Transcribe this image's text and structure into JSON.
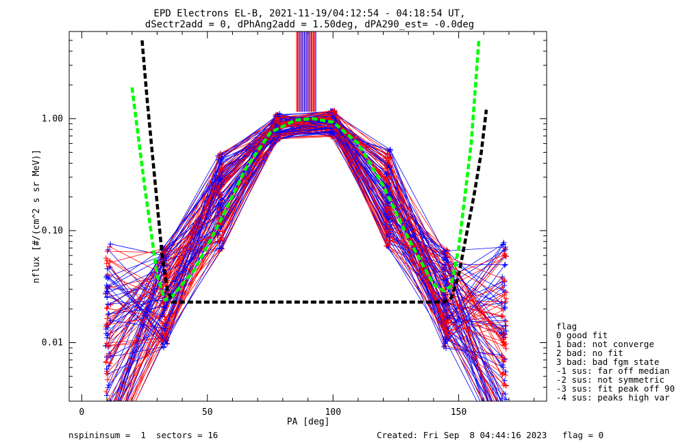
{
  "chart_data": {
    "type": "line",
    "title": "EPD Electrons EL-B, 2021-11-19/04:12:54 - 04:18:54 UT,",
    "subtitle": "dSectr2add = 0, dPhAng2add = 1.50deg, dPA290_est=  -0.0deg",
    "xlabel": "PA [deg]",
    "ylabel": "nflux [#/(cm^2 s sr MeV)]",
    "xlim": [
      -5,
      185
    ],
    "ylim": [
      0.003,
      6.0
    ],
    "yscale": "log",
    "x_ticks": [
      {
        "value": 0,
        "label": "0"
      },
      {
        "value": 50,
        "label": "50"
      },
      {
        "value": 100,
        "label": "100"
      },
      {
        "value": 150,
        "label": "150"
      }
    ],
    "y_ticks": [
      {
        "value": 0.01,
        "label": "0.01"
      },
      {
        "value": 0.1,
        "label": "0.10"
      },
      {
        "value": 1.0,
        "label": "1.00"
      }
    ],
    "series_colors": {
      "red": "#ff0000",
      "blue": "#0000ff",
      "fit_green": "#00ff00",
      "fit_black": "#000000"
    },
    "data_pa_samples": [
      10.5,
      33.0,
      55.0,
      78.0,
      100.0,
      122.0,
      145.0,
      168.0
    ],
    "representative_profile": [
      0.008,
      0.025,
      0.18,
      0.85,
      0.9,
      0.2,
      0.025,
      0.008
    ],
    "fit_curves": [
      {
        "color": "#00ff00",
        "style": "dashed",
        "x": [
          20,
          25,
          30,
          33,
          36,
          45,
          55,
          65,
          75,
          85,
          92,
          100,
          110,
          120,
          130,
          140,
          144,
          147,
          150,
          155,
          158
        ],
        "y": [
          1.9,
          0.25,
          0.04,
          0.024,
          0.026,
          0.045,
          0.12,
          0.35,
          0.75,
          0.97,
          1.0,
          0.93,
          0.6,
          0.25,
          0.085,
          0.033,
          0.029,
          0.032,
          0.07,
          0.6,
          5.0
        ]
      },
      {
        "color": "#000000",
        "style": "dashed",
        "x": [
          24,
          26,
          29,
          32,
          34,
          36,
          144,
          147,
          150,
          153,
          156,
          159,
          161
        ],
        "y": [
          5.0,
          1.5,
          0.3,
          0.06,
          0.03,
          0.023,
          0.023,
          0.025,
          0.04,
          0.09,
          0.2,
          0.5,
          1.2
        ]
      }
    ],
    "legend": {
      "placement": "right-bottom",
      "title": "flag",
      "entries": [
        " 0 good fit",
        " 1 bad: not converge",
        " 2 bad: no fit",
        " 3 bad: bad fgm state",
        "-1 sus: far off median",
        "-2 sus: not symmetric",
        "-3 sus: fit peak off 90",
        "-4 sus: peaks high var"
      ]
    },
    "grid": false
  },
  "footer": {
    "left": "nspininsum =  1  sectors = 16",
    "right": "Created: Fri Sep  8 04:44:16 2023   flag = 0"
  }
}
